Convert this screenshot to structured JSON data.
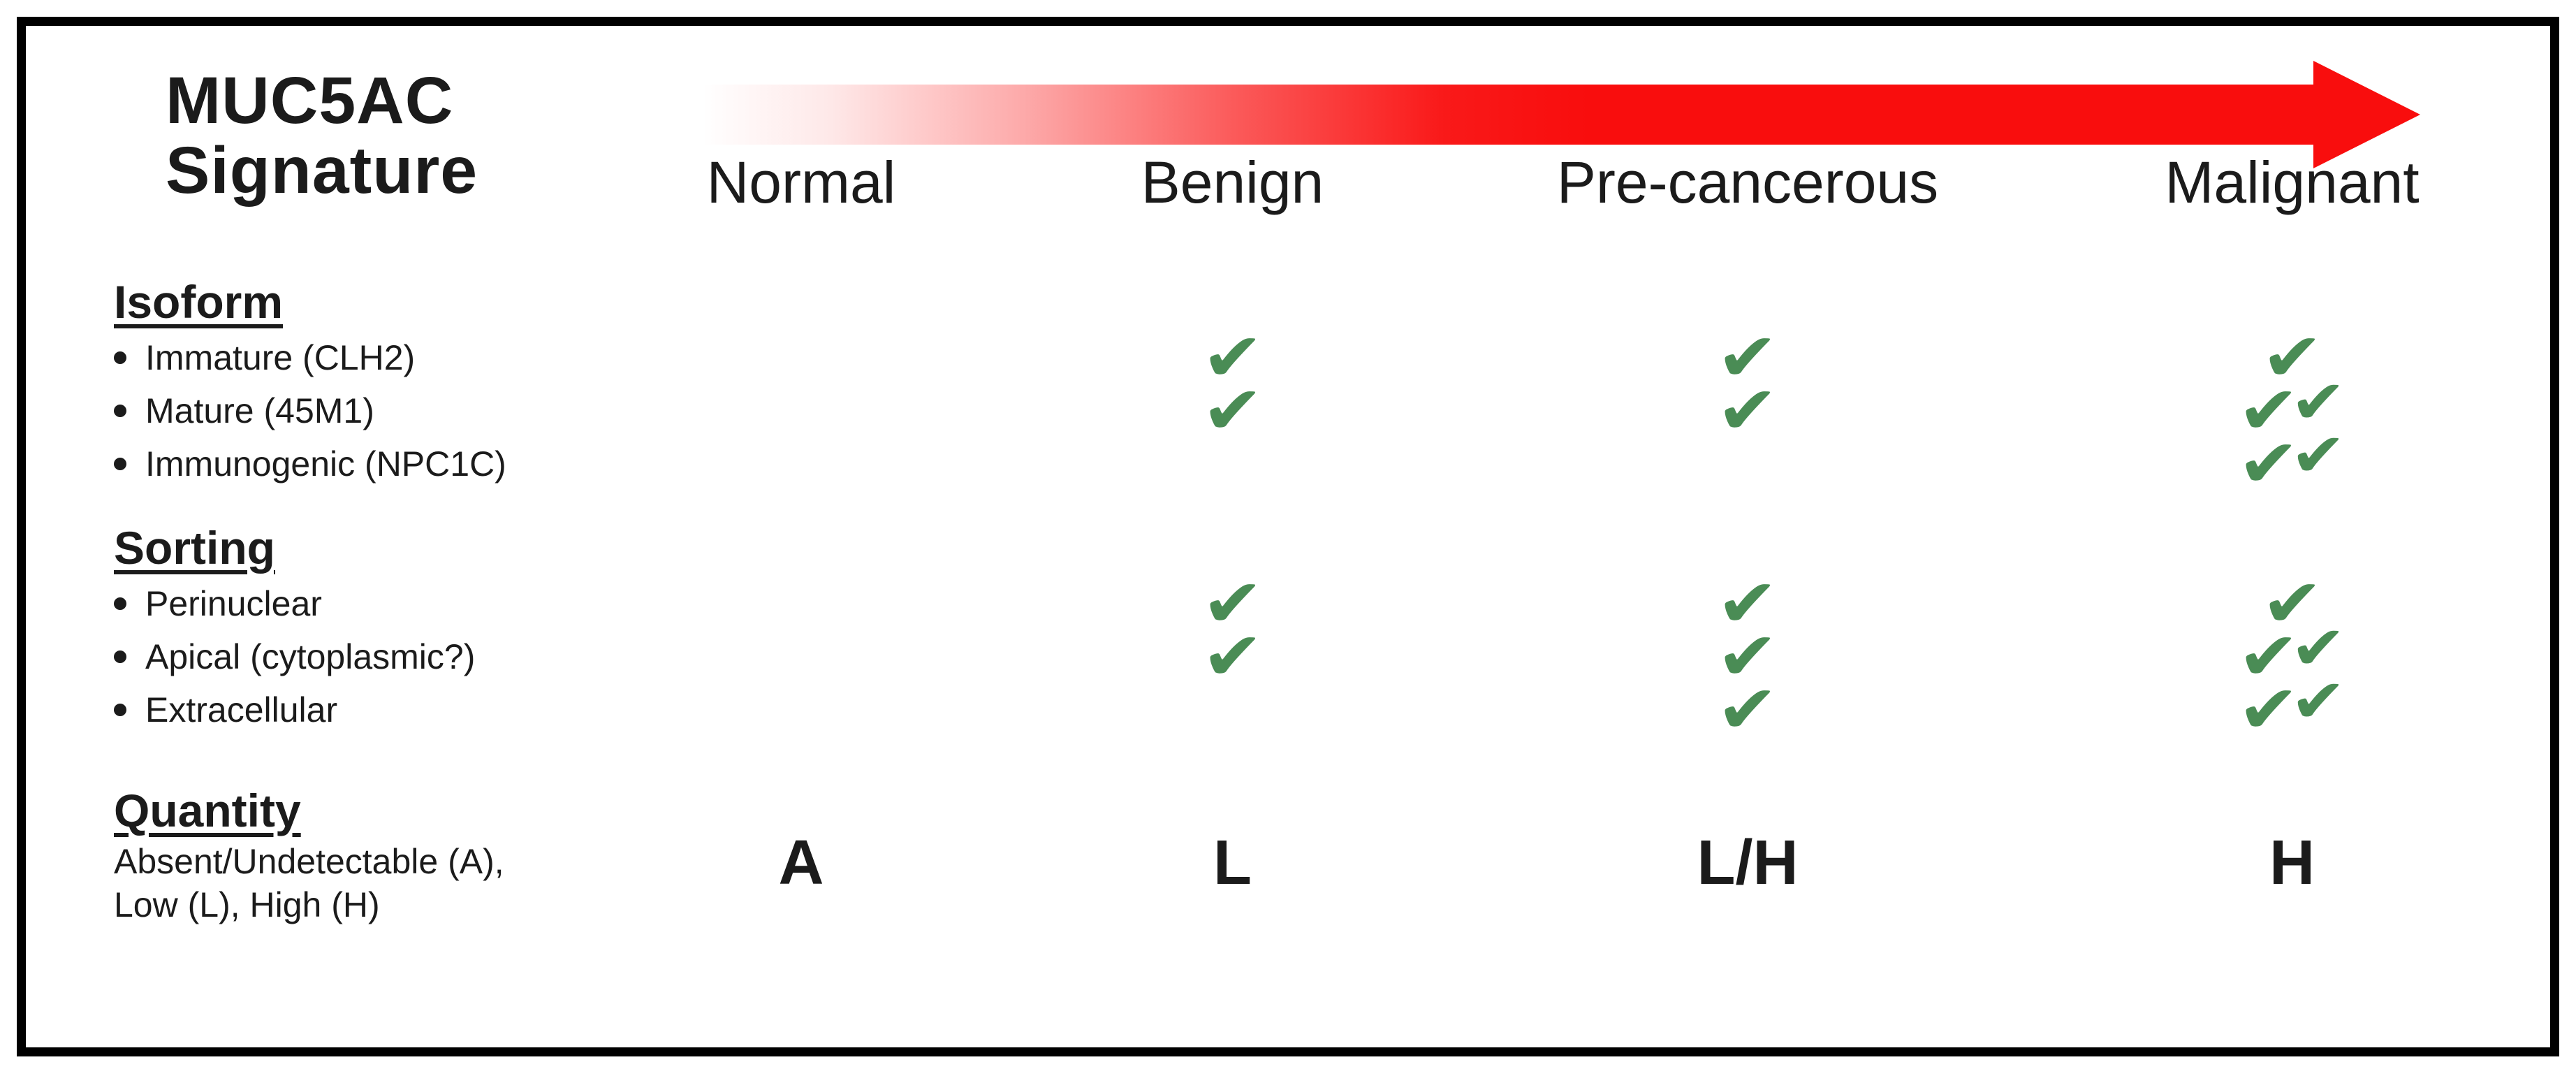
{
  "title": {
    "line1": "MUC5AC",
    "line2": "Signature"
  },
  "stages": [
    {
      "label": "Normal"
    },
    {
      "label": "Benign"
    },
    {
      "label": "Pre-cancerous"
    },
    {
      "label": "Malignant"
    }
  ],
  "progression_arrow": {
    "direction": "right"
  },
  "sections": [
    {
      "heading": "Isoform",
      "rows": [
        {
          "label": "Immature (CLH2)",
          "checks": [
            0,
            1,
            1,
            1
          ]
        },
        {
          "label": "Mature (45M1)",
          "checks": [
            0,
            1,
            1,
            2
          ]
        },
        {
          "label": "Immunogenic (NPC1C)",
          "checks": [
            0,
            0,
            0,
            2
          ]
        }
      ]
    },
    {
      "heading": "Sorting",
      "rows": [
        {
          "label": "Perinuclear",
          "checks": [
            0,
            1,
            1,
            1
          ]
        },
        {
          "label": "Apical (cytoplasmic?)",
          "checks": [
            0,
            1,
            1,
            2
          ]
        },
        {
          "label": "Extracellular",
          "checks": [
            0,
            0,
            1,
            2
          ]
        }
      ]
    },
    {
      "heading": "Quantity",
      "note_line1": "Absent/Undetectable (A),",
      "note_line2": "Low (L), High (H)",
      "values": [
        "A",
        "L",
        "L/H",
        "H"
      ]
    }
  ],
  "check_icon": {
    "glyph": "✔",
    "name": "checkmark"
  },
  "colors": {
    "arrow_red": "#f90d0d",
    "check_green": "#4a8c55",
    "text": "#1b1b1b",
    "border": "#000000"
  }
}
